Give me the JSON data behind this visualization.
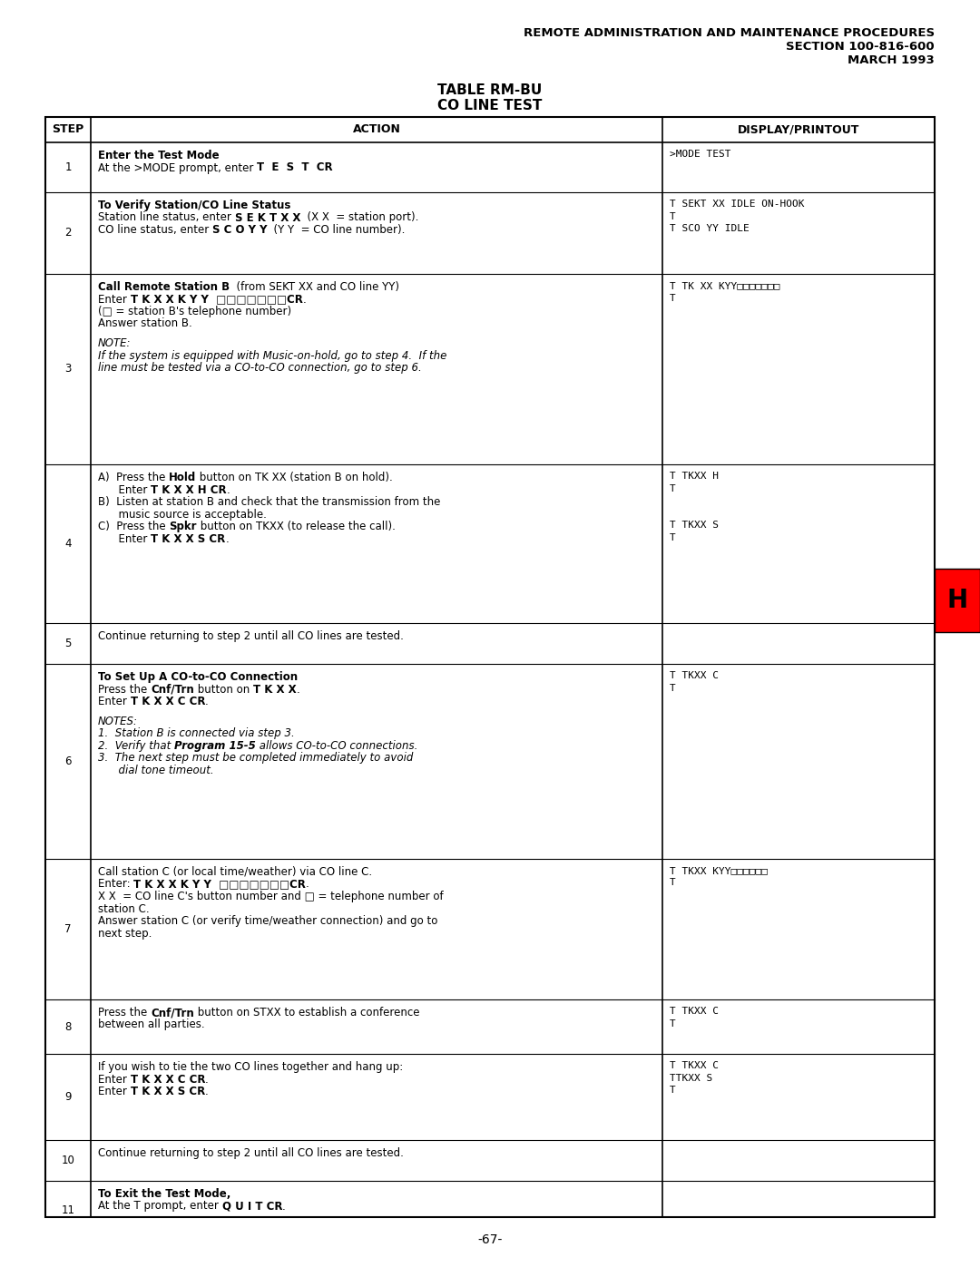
{
  "header_line1": "REMOTE ADMINISTRATION AND MAINTENANCE PROCEDURES",
  "header_line2": "SECTION 100-816-600",
  "header_line3": "MARCH 1993",
  "table_title1": "TABLE RM-BU",
  "table_title2": "CO LINE TEST",
  "col_headers": [
    "STEP",
    "ACTION",
    "DISPLAY/PRINTOUT"
  ],
  "footer": "-67-",
  "tab_marker": "H",
  "rows": [
    {
      "step": "1",
      "action_lines": [
        {
          "text": "Enter the Test Mode",
          "bold": true
        },
        {
          "text": "At the >MODE prompt, enter ",
          "bold": false,
          "append": "T  E  S  T  CR",
          "append_bold": true,
          ".": "."
        }
      ],
      "display_lines": [
        {
          "text": ">MODE TEST",
          "mono": true
        }
      ]
    },
    {
      "step": "2",
      "action_lines": [
        {
          "text": "To Verify Station/CO Line Status",
          "bold": true
        },
        {
          "text": "Station line status, enter ",
          "bold": false,
          "append": "S E K T X X",
          "append_bold": true,
          "after": "  (X X  = station port)."
        },
        {
          "text": "CO line status, enter ",
          "bold": false,
          "append": "S C O Y Y",
          "append_bold": true,
          "after": "  (Y Y  = CO line number)."
        }
      ],
      "display_lines": [
        {
          "text": "T SEKT XX IDLE ON-HOOK",
          "mono": true
        },
        {
          "text": "T",
          "mono": true
        },
        {
          "text": "T SCO YY IDLE",
          "mono": true
        }
      ]
    },
    {
      "step": "3",
      "action_lines": [
        {
          "text": "Call Remote Station B",
          "bold": true,
          "after": "  (from SEKT XX and CO line YY)"
        },
        {
          "text": "Enter ",
          "bold": false,
          "append": "T K X X K Y Y  □□□□□□□CR",
          "append_bold": true,
          "after": "."
        },
        {
          "text": "(□ = station B's telephone number)",
          "bold": false
        },
        {
          "text": "Answer station B.",
          "bold": false
        },
        {
          "text": "",
          "bold": false
        },
        {
          "text": "NOTE:",
          "bold": false,
          "italic": true
        },
        {
          "text": "If the system is equipped with Music-on-hold, go to step 4.  If the",
          "bold": false,
          "italic": true
        },
        {
          "text": "line must be tested via a CO-to-CO connection, go to step 6.",
          "bold": false,
          "italic": true
        }
      ],
      "display_lines": [
        {
          "text": "T TK XX KYY□□□□□□□",
          "mono": true
        },
        {
          "text": "T",
          "mono": true
        }
      ]
    },
    {
      "step": "4",
      "action_lines": [
        {
          "text": "A)  Press the ",
          "bold": false,
          "append": "Hold",
          "append_bold": true,
          "after": " button on TK XX (station B on hold)."
        },
        {
          "text": "      Enter ",
          "bold": false,
          "append": "T K X X H CR",
          "append_bold": true,
          "after": "."
        },
        {
          "text": "B)  Listen at station B and check that the transmission from the",
          "bold": false
        },
        {
          "text": "      music source is acceptable.",
          "bold": false
        },
        {
          "text": "C)  Press the ",
          "bold": false,
          "append": "Spkr",
          "append_bold": true,
          "after": " button on TKXX (to release the call)."
        },
        {
          "text": "      Enter ",
          "bold": false,
          "append": "T K X X S CR",
          "append_bold": true,
          "after": "."
        }
      ],
      "display_lines": [
        {
          "text": "T TKXX H",
          "mono": true
        },
        {
          "text": "T",
          "mono": true
        },
        {
          "text": "",
          "mono": false
        },
        {
          "text": "",
          "mono": false
        },
        {
          "text": "T TKXX S",
          "mono": true
        },
        {
          "text": "T",
          "mono": true
        }
      ]
    },
    {
      "step": "5",
      "action_lines": [
        {
          "text": "Continue returning to step 2 until all CO lines are tested.",
          "bold": false
        }
      ],
      "display_lines": []
    },
    {
      "step": "6",
      "action_lines": [
        {
          "text": "To Set Up A CO-to-CO Connection",
          "bold": true
        },
        {
          "text": "Press the ",
          "bold": false,
          "append": "Cnf/Trn",
          "append_bold": true,
          "after": " button on ",
          "append2": "T K X X",
          "append2_bold": true,
          "after2": "."
        },
        {
          "text": "Enter ",
          "bold": false,
          "append": "T K X X C CR",
          "append_bold": true,
          "after": "."
        },
        {
          "text": "",
          "bold": false
        },
        {
          "text": "NOTES:",
          "bold": false,
          "italic": true
        },
        {
          "text": "1.  Station B is connected via step 3.",
          "bold": false,
          "italic": true
        },
        {
          "text": "2.  Verify that ",
          "bold": false,
          "italic": true,
          "append": "Program 15-5",
          "append_bold": true,
          "append_italic": true,
          "after": " allows CO-to-CO connections."
        },
        {
          "text": "3.  The next step must be completed immediately to avoid",
          "bold": false,
          "italic": true
        },
        {
          "text": "      dial tone timeout.",
          "bold": false,
          "italic": true
        }
      ],
      "display_lines": [
        {
          "text": "T TKXX C",
          "mono": true
        },
        {
          "text": "T",
          "mono": true
        }
      ]
    },
    {
      "step": "7",
      "action_lines": [
        {
          "text": "Call station C (or local time/weather) via CO line C.",
          "bold": false
        },
        {
          "text": "Enter: ",
          "bold": false,
          "append": "T K X X K Y Y  □□□□□□□CR",
          "append_bold": true,
          "after": "."
        },
        {
          "text": "X X  = CO line C's button number and □ = telephone number of",
          "bold": false
        },
        {
          "text": "station C.",
          "bold": false
        },
        {
          "text": "Answer station C (or verify time/weather connection) and go to",
          "bold": false
        },
        {
          "text": "next step.",
          "bold": false
        }
      ],
      "display_lines": [
        {
          "text": "T TKXX KYY□□□□□□",
          "mono": true
        },
        {
          "text": "T",
          "mono": true
        }
      ]
    },
    {
      "step": "8",
      "action_lines": [
        {
          "text": "Press the ",
          "bold": false,
          "append": "Cnf/Trn",
          "append_bold": true,
          "after": " button on STXX to establish a conference"
        },
        {
          "text": "between all parties.",
          "bold": false
        }
      ],
      "display_lines": [
        {
          "text": "T TKXX C",
          "mono": true
        },
        {
          "text": "T",
          "mono": true
        }
      ]
    },
    {
      "step": "9",
      "action_lines": [
        {
          "text": "If you wish to tie the two CO lines together and hang up:",
          "bold": false
        },
        {
          "text": "Enter ",
          "bold": false,
          "append": "T K X X C CR",
          "append_bold": true,
          "after": "."
        },
        {
          "text": "Enter ",
          "bold": false,
          "append": "T K X X S CR",
          "append_bold": true,
          "after": "."
        }
      ],
      "display_lines": [
        {
          "text": "T TKXX C",
          "mono": true
        },
        {
          "text": "TTKXX S",
          "mono": true
        },
        {
          "text": "T",
          "mono": true
        }
      ]
    },
    {
      "step": "10",
      "action_lines": [
        {
          "text": "Continue returning to step 2 until all CO lines are tested.",
          "bold": false
        }
      ],
      "display_lines": []
    },
    {
      "step": "11",
      "action_lines": [
        {
          "text": "To Exit the Test Mode,",
          "bold": true
        },
        {
          "text": "At the T prompt, enter ",
          "bold": false,
          "append": "Q U I T CR",
          "append_bold": true,
          "after": "."
        }
      ],
      "display_lines": []
    }
  ]
}
